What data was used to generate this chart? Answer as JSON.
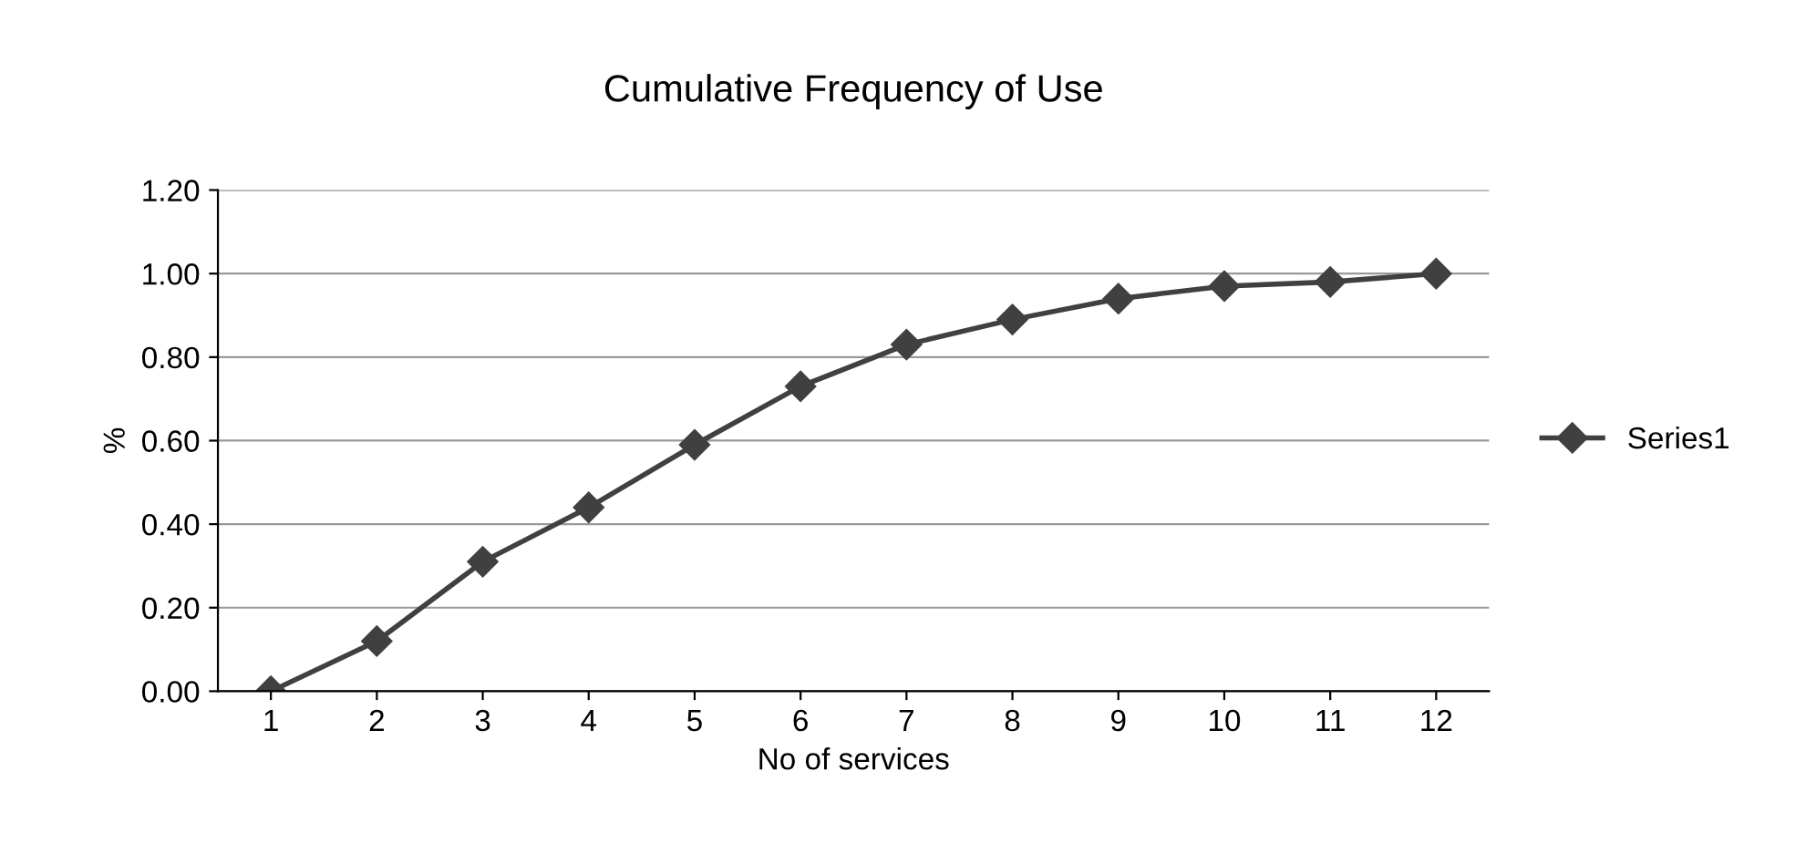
{
  "chart_data": {
    "type": "line",
    "title": "Cumulative Frequency of Use",
    "xlabel": "No of services",
    "ylabel": "%",
    "categories": [
      "1",
      "2",
      "3",
      "4",
      "5",
      "6",
      "7",
      "8",
      "9",
      "10",
      "11",
      "12"
    ],
    "series": [
      {
        "name": "Series1",
        "color": "#404040",
        "values": [
          0.0,
          0.12,
          0.31,
          0.44,
          0.59,
          0.73,
          0.83,
          0.89,
          0.94,
          0.97,
          0.98,
          1.0
        ]
      }
    ],
    "ylim": [
      0,
      1.2
    ],
    "yticks": [
      {
        "value": 0,
        "label": "0.00"
      },
      {
        "value": 0.2,
        "label": "0.20"
      },
      {
        "value": 0.4,
        "label": "0.40"
      },
      {
        "value": 0.6,
        "label": "0.60"
      },
      {
        "value": 0.8,
        "label": "0.80"
      },
      {
        "value": 1.0,
        "label": "1.00"
      },
      {
        "value": 1.2,
        "label": "1.20"
      }
    ],
    "grid": "y",
    "legend": "right",
    "marker": "diamond",
    "line_style": "solid"
  }
}
